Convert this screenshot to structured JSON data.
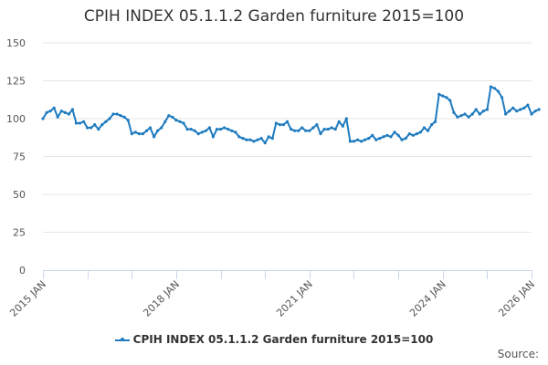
{
  "chart_title": "CPIH INDEX 05.1.1.2 Garden furniture 2015=100",
  "legend": {
    "label": "CPIH INDEX 05.1.1.2 Garden furniture 2015=100",
    "color": "#1f7bbf"
  },
  "source_label": "Source:",
  "colors": {
    "line": "#1f7bbf",
    "grid": "#e6e6e6",
    "axis": "#ccd6eb"
  },
  "chart_data": {
    "type": "line",
    "title": "CPIH INDEX 05.1.1.2 Garden furniture 2015=100",
    "xlabel": "",
    "ylabel": "",
    "ylim": [
      0,
      150
    ],
    "yticks": [
      0,
      25,
      50,
      75,
      100,
      125,
      150
    ],
    "xticks": [
      "2015 JAN",
      "2018 JAN",
      "2021 JAN",
      "2024 JAN",
      "2026 JAN"
    ],
    "grid": true,
    "legend_position": "bottom",
    "x_start": "2015 JAN",
    "x_frequency": "monthly",
    "series": [
      {
        "name": "CPIH INDEX 05.1.1.2 Garden furniture 2015=100",
        "values": [
          100,
          104,
          105,
          107,
          101,
          105,
          104,
          103,
          106,
          97,
          97,
          98,
          94,
          94,
          96,
          93,
          96,
          98,
          100,
          103,
          103,
          102,
          101,
          99,
          90,
          91,
          90,
          90,
          92,
          94,
          88,
          92,
          94,
          98,
          102,
          101,
          99,
          98,
          97,
          93,
          93,
          92,
          90,
          91,
          92,
          94,
          88,
          93,
          93,
          94,
          93,
          92,
          91,
          88,
          87,
          86,
          86,
          85,
          86,
          87,
          84,
          88,
          87,
          97,
          96,
          96,
          98,
          93,
          92,
          92,
          94,
          92,
          92,
          94,
          96,
          90,
          93,
          93,
          94,
          93,
          98,
          95,
          100,
          85,
          85,
          86,
          85,
          86,
          87,
          89,
          86,
          87,
          88,
          89,
          88,
          91,
          89,
          86,
          87,
          90,
          89,
          90,
          91,
          94,
          92,
          96,
          98,
          116,
          115,
          114,
          112,
          104,
          101,
          102,
          103,
          101,
          103,
          106,
          103,
          105,
          106,
          121,
          120,
          118,
          114,
          103,
          105,
          107,
          105,
          106,
          107,
          109,
          103,
          105,
          106
        ]
      }
    ]
  }
}
